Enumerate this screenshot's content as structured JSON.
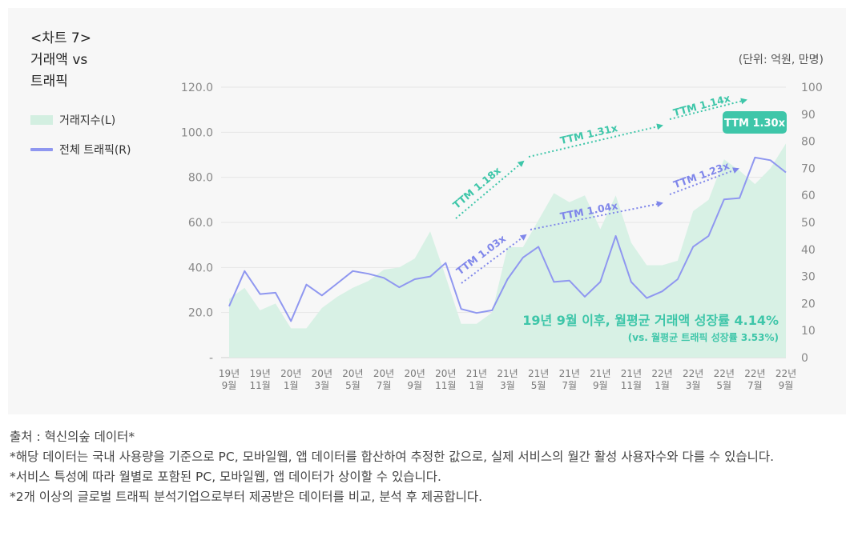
{
  "header": {
    "chart_number": "<차트 7>",
    "title_line1": "거래액 vs",
    "title_line2": "트래픽",
    "unit": "(단위: 억원, 만명)"
  },
  "legend": {
    "area_label": "거래지수(L)",
    "line_label": "전체 트래픽(R)"
  },
  "chart_data": {
    "type": "area+line",
    "categories": [
      "19.09",
      "19.10",
      "19.11",
      "19.12",
      "20.01",
      "20.02",
      "20.03",
      "20.04",
      "20.05",
      "20.06",
      "20.07",
      "20.08",
      "20.09",
      "20.10",
      "20.11",
      "20.12",
      "21.01",
      "21.02",
      "21.03",
      "21.04",
      "21.05",
      "21.06",
      "21.07",
      "21.08",
      "21.09",
      "21.10",
      "21.11",
      "21.12",
      "22.01",
      "22.02",
      "22.03",
      "22.04",
      "22.05",
      "22.06",
      "22.07",
      "22.08",
      "22.09"
    ],
    "x_tick_labels": [
      {
        "year": "19년",
        "month": "9월"
      },
      {
        "year": "19년",
        "month": "11월"
      },
      {
        "year": "20년",
        "month": "1월"
      },
      {
        "year": "20년",
        "month": "3월"
      },
      {
        "year": "20년",
        "month": "5월"
      },
      {
        "year": "20년",
        "month": "7월"
      },
      {
        "year": "20년",
        "month": "9월"
      },
      {
        "year": "20년",
        "month": "11월"
      },
      {
        "year": "21년",
        "month": "1월"
      },
      {
        "year": "21년",
        "month": "3월"
      },
      {
        "year": "21년",
        "month": "5월"
      },
      {
        "year": "21년",
        "month": "7월"
      },
      {
        "year": "21년",
        "month": "9월"
      },
      {
        "year": "21년",
        "month": "11월"
      },
      {
        "year": "22년",
        "month": "1월"
      },
      {
        "year": "22년",
        "month": "3월"
      },
      {
        "year": "22년",
        "month": "5월"
      },
      {
        "year": "22년",
        "month": "7월"
      },
      {
        "year": "22년",
        "month": "9월"
      }
    ],
    "series": [
      {
        "name": "거래지수(L)",
        "axis": "left",
        "kind": "area",
        "color": "#d8f1e5",
        "values": [
          26,
          31,
          21,
          24,
          13,
          13,
          22,
          27,
          31,
          34,
          39,
          40,
          44,
          56,
          36,
          15,
          15,
          20,
          49,
          49,
          61,
          73,
          69,
          72,
          57,
          72,
          51,
          41,
          41,
          43,
          65,
          70,
          88,
          83,
          77,
          84,
          95
        ]
      },
      {
        "name": "전체 트래픽(R)",
        "axis": "right",
        "kind": "line",
        "color": "#8f97f0",
        "values": [
          19,
          32,
          23.5,
          24,
          13.5,
          27,
          23,
          27.5,
          32,
          31,
          29.5,
          26,
          29,
          30,
          35,
          18,
          16.5,
          17.5,
          29,
          37,
          41,
          28,
          28.5,
          22.5,
          28,
          45,
          28,
          22,
          24.5,
          29,
          41,
          45,
          58.5,
          59,
          74,
          73,
          68.5
        ]
      }
    ],
    "left_axis": {
      "min": 0,
      "max": 120,
      "ticks": [
        "-",
        "20.0",
        "40.0",
        "60.0",
        "80.0",
        "100.0",
        "120.0"
      ]
    },
    "right_axis": {
      "min": 0,
      "max": 100,
      "ticks": [
        "0",
        "10",
        "20",
        "30",
        "40",
        "50",
        "60",
        "70",
        "80",
        "90",
        "100"
      ]
    },
    "annotations": {
      "trend_green": [
        {
          "label": "TTM 1.18x"
        },
        {
          "label": "TTM 1.31x"
        },
        {
          "label": "TTM 1.14x"
        }
      ],
      "trend_blue": [
        {
          "label": "TTM 1.03x"
        },
        {
          "label": "TTM 1.04x"
        },
        {
          "label": "TTM 1.23x"
        }
      ],
      "badge": "TTM 1.30x",
      "headline": "19년 9월 이후, 월평균 거래액 성장률 4.14%",
      "subline": "(vs. 월평균 트래픽 성장률 3.53%)"
    },
    "colors": {
      "green": "#3ec6a9",
      "blue": "#7f86ea",
      "badge_bg": "#3ec6a9"
    }
  },
  "notes": [
    "출처 : 혁신의숲 데이터*",
    "*해당 데이터는 국내 사용량을 기준으로 PC, 모바일웹, 앱 데이터를 합산하여 추정한 값으로, 실제 서비스의 월간 활성 사용자수와 다를 수 있습니다.",
    "*서비스 특성에 따라 월별로 포함된 PC, 모바일웹, 앱 데이터가 상이할 수 있습니다.",
    "*2개 이상의 글로벌 트래픽 분석기업으로부터 제공받은 데이터를 비교, 분석 후 제공합니다."
  ]
}
